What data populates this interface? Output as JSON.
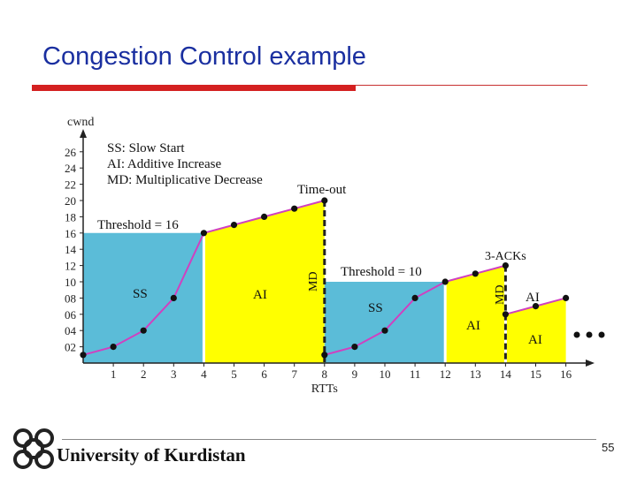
{
  "slide": {
    "title": "Congestion Control example",
    "footer_text": "University of Kurdistan",
    "page_number": "55"
  },
  "chart_data": {
    "type": "line",
    "xlabel": "RTTs",
    "ylabel": "cwnd",
    "x": [
      0,
      1,
      2,
      3,
      4,
      5,
      6,
      7,
      8,
      9,
      10,
      11,
      12,
      13,
      14,
      15,
      16
    ],
    "xticks": [
      "1",
      "2",
      "3",
      "4",
      "5",
      "6",
      "7",
      "8",
      "9",
      "10",
      "11",
      "12",
      "13",
      "14",
      "15",
      "16"
    ],
    "yticks": [
      "02",
      "04",
      "06",
      "08",
      "10",
      "12",
      "14",
      "16",
      "18",
      "20",
      "22",
      "24",
      "26"
    ],
    "xlim": [
      0,
      16.5
    ],
    "ylim": [
      0,
      28
    ],
    "series": [
      {
        "segment": 1,
        "points": [
          [
            0,
            1
          ],
          [
            1,
            2
          ],
          [
            2,
            4
          ],
          [
            3,
            8
          ],
          [
            4,
            16
          ],
          [
            5,
            17
          ],
          [
            6,
            18
          ],
          [
            7,
            19
          ],
          [
            8,
            20
          ]
        ]
      },
      {
        "segment": 2,
        "points": [
          [
            8,
            1
          ],
          [
            9,
            2
          ],
          [
            10,
            4
          ],
          [
            11,
            8
          ],
          [
            12,
            10
          ],
          [
            13,
            11
          ],
          [
            14,
            12
          ]
        ]
      },
      {
        "segment": 3,
        "points": [
          [
            14,
            6
          ],
          [
            15,
            7
          ],
          [
            16,
            8
          ]
        ]
      }
    ],
    "regions": [
      {
        "label": "SS",
        "color": "#5bbcd8",
        "x0": 0,
        "x1": 4,
        "top": 16
      },
      {
        "label": "AI",
        "color": "#ffff00",
        "x0": 4,
        "x1": 8,
        "top_from": 16,
        "top_to": 20
      },
      {
        "label": "SS",
        "color": "#5bbcd8",
        "x0": 8,
        "x1": 12,
        "top": 10
      },
      {
        "label": "AI",
        "color": "#ffff00",
        "x0": 12,
        "x1": 14,
        "top_from": 10,
        "top_to": 12
      },
      {
        "label": "AI",
        "color": "#ffff00",
        "x0": 14,
        "x1": 16,
        "top_from": 6,
        "top_to": 8
      }
    ],
    "legend_lines": [
      "SS: Slow Start",
      "AI: Additive Increase",
      "MD: Multiplicative Decrease"
    ],
    "annotations": {
      "threshold1": "Threshold = 16",
      "threshold2": "Threshold = 10",
      "timeout": "Time-out",
      "three_acks": "3-ACKs",
      "md": "MD",
      "ss": "SS",
      "ai": "AI"
    },
    "colors": {
      "line": "#d040c0",
      "blue": "#5bbcd8",
      "yellow": "#ffff00",
      "axis": "#222222"
    }
  }
}
